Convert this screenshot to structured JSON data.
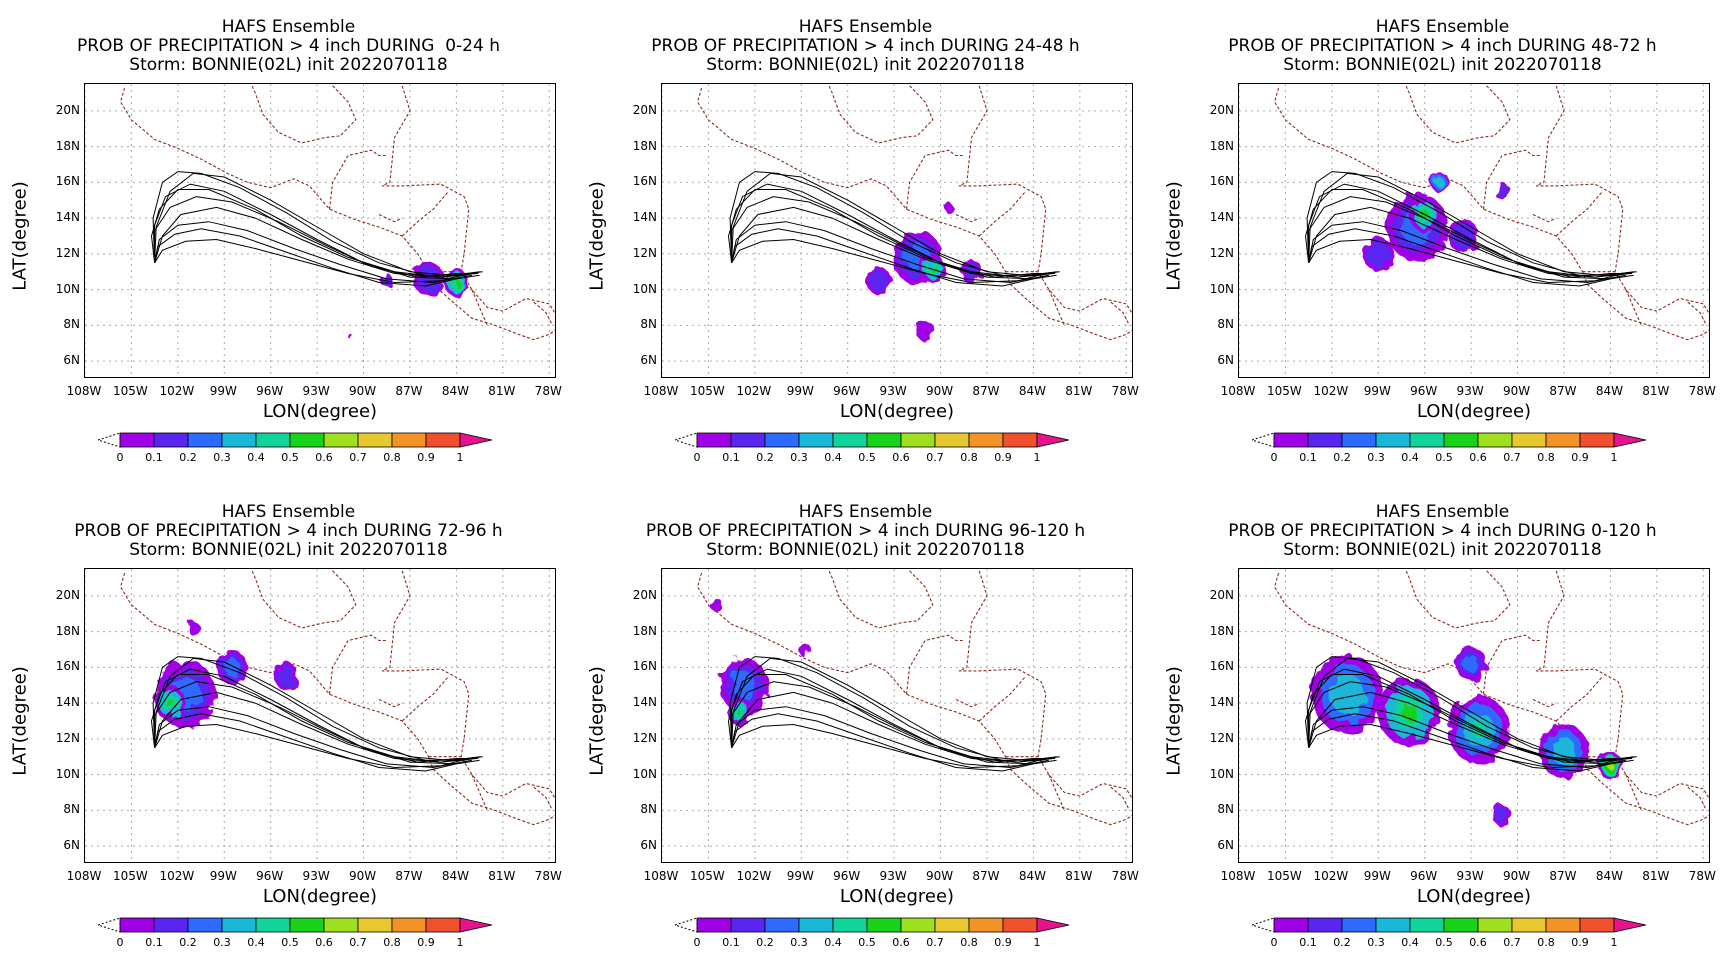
{
  "chart_data": {
    "type": "heatmap",
    "colors": {
      "scale": [
        "#a100e6",
        "#5a25f0",
        "#2d6bff",
        "#1bb7d8",
        "#0fd59a",
        "#19d21a",
        "#9fe01e",
        "#e8c830",
        "#f39225",
        "#f0502d",
        "#e6148c"
      ],
      "map_border": "#8b2a1f",
      "grid": "#aaaaaa",
      "track": "#000000"
    },
    "colorbar": {
      "labels": [
        "0",
        "0.1",
        "0.2",
        "0.3",
        "0.4",
        "0.5",
        "0.6",
        "0.7",
        "0.8",
        "0.9",
        "1"
      ]
    },
    "panels": [
      {
        "title_line1": "HAFS Ensemble",
        "title_line2": "PROB OF PRECIPITATION > 4 inch DURING  0-24 h",
        "title_line3": "Storm: BONNIE(02L) init 2022070118",
        "xlabel": "LON(degree)",
        "ylabel": "LAT(degree)",
        "x_ticks": [
          "108W",
          "105W",
          "102W",
          "99W",
          "96W",
          "93W",
          "90W",
          "87W",
          "84W",
          "81W",
          "78W"
        ],
        "y_ticks": [
          "20N",
          "18N",
          "16N",
          "14N",
          "12N",
          "10N",
          "8N",
          "6N"
        ],
        "xlim": [
          -108,
          -77.5
        ],
        "ylim": [
          5,
          21.5
        ],
        "blobs": [
          {
            "lon": -85.8,
            "lat": 10.6,
            "r": 1.0,
            "p": 0.15
          },
          {
            "lon": -84.0,
            "lat": 10.4,
            "r": 0.8,
            "p": 0.45
          },
          {
            "lon": -88.5,
            "lat": 10.5,
            "r": 0.4,
            "p": 0.1
          },
          {
            "lon": -91.0,
            "lat": 7.5,
            "r": 0.15,
            "p": 0.05
          }
        ]
      },
      {
        "title_line1": "HAFS Ensemble",
        "title_line2": "PROB OF PRECIPITATION > 4 inch DURING 24-48 h",
        "title_line3": "Storm: BONNIE(02L) init 2022070118",
        "xlabel": "LON(degree)",
        "ylabel": "LAT(degree)",
        "x_ticks": [
          "108W",
          "105W",
          "102W",
          "99W",
          "96W",
          "93W",
          "90W",
          "87W",
          "84W",
          "81W",
          "78W"
        ],
        "y_ticks": [
          "20N",
          "18N",
          "16N",
          "14N",
          "12N",
          "10N",
          "8N",
          "6N"
        ],
        "xlim": [
          -108,
          -77.5
        ],
        "ylim": [
          5,
          21.5
        ],
        "blobs": [
          {
            "lon": -91.5,
            "lat": 11.8,
            "r": 1.6,
            "p": 0.2
          },
          {
            "lon": -90.5,
            "lat": 11.2,
            "r": 0.8,
            "p": 0.4
          },
          {
            "lon": -94.0,
            "lat": 10.5,
            "r": 0.8,
            "p": 0.1
          },
          {
            "lon": -91.0,
            "lat": 7.7,
            "r": 0.6,
            "p": 0.05
          },
          {
            "lon": -88.0,
            "lat": 11.0,
            "r": 0.7,
            "p": 0.1
          },
          {
            "lon": -89.5,
            "lat": 14.6,
            "r": 0.3,
            "p": 0.05
          }
        ]
      },
      {
        "title_line1": "HAFS Ensemble",
        "title_line2": "PROB OF PRECIPITATION > 4 inch DURING 48-72 h",
        "title_line3": "Storm: BONNIE(02L) init 2022070118",
        "xlabel": "LON(degree)",
        "ylabel": "LAT(degree)",
        "x_ticks": [
          "108W",
          "105W",
          "102W",
          "99W",
          "96W",
          "93W",
          "90W",
          "87W",
          "84W",
          "81W",
          "78W"
        ],
        "y_ticks": [
          "20N",
          "18N",
          "16N",
          "14N",
          "12N",
          "10N",
          "8N",
          "6N"
        ],
        "xlim": [
          -108,
          -77.5
        ],
        "ylim": [
          5,
          21.5
        ],
        "blobs": [
          {
            "lon": -96.5,
            "lat": 13.5,
            "r": 2.0,
            "p": 0.2
          },
          {
            "lon": -96.0,
            "lat": 14.2,
            "r": 1.0,
            "p": 0.4
          },
          {
            "lon": -95.0,
            "lat": 16.0,
            "r": 0.6,
            "p": 0.3
          },
          {
            "lon": -91.0,
            "lat": 15.5,
            "r": 0.5,
            "p": 0.1
          },
          {
            "lon": -99.0,
            "lat": 12.0,
            "r": 1.0,
            "p": 0.15
          },
          {
            "lon": -93.5,
            "lat": 13.0,
            "r": 1.0,
            "p": 0.1
          }
        ]
      },
      {
        "title_line1": "HAFS Ensemble",
        "title_line2": "PROB OF PRECIPITATION > 4 inch DURING 72-96 h",
        "title_line3": "Storm: BONNIE(02L) init 2022070118",
        "xlabel": "LON(degree)",
        "ylabel": "LAT(degree)",
        "x_ticks": [
          "108W",
          "105W",
          "102W",
          "99W",
          "96W",
          "93W",
          "90W",
          "87W",
          "84W",
          "81W",
          "78W"
        ],
        "y_ticks": [
          "20N",
          "18N",
          "16N",
          "14N",
          "12N",
          "10N",
          "8N",
          "6N"
        ],
        "xlim": [
          -108,
          -77.5
        ],
        "ylim": [
          5,
          21.5
        ],
        "blobs": [
          {
            "lon": -101.5,
            "lat": 14.5,
            "r": 2.0,
            "p": 0.2
          },
          {
            "lon": -102.5,
            "lat": 14.0,
            "r": 1.0,
            "p": 0.45
          },
          {
            "lon": -98.5,
            "lat": 16.0,
            "r": 1.0,
            "p": 0.2
          },
          {
            "lon": -95.0,
            "lat": 15.5,
            "r": 0.8,
            "p": 0.15
          },
          {
            "lon": -101.0,
            "lat": 18.2,
            "r": 0.4,
            "p": 0.05
          }
        ]
      },
      {
        "title_line1": "HAFS Ensemble",
        "title_line2": "PROB OF PRECIPITATION > 4 inch DURING 96-120 h",
        "title_line3": "Storm: BONNIE(02L) init 2022070118",
        "xlabel": "LON(degree)",
        "ylabel": "LAT(degree)",
        "x_ticks": [
          "108W",
          "105W",
          "102W",
          "99W",
          "96W",
          "93W",
          "90W",
          "87W",
          "84W",
          "81W",
          "78W"
        ],
        "y_ticks": [
          "20N",
          "18N",
          "16N",
          "14N",
          "12N",
          "10N",
          "8N",
          "6N"
        ],
        "xlim": [
          -108,
          -77.5
        ],
        "ylim": [
          5,
          21.5
        ],
        "blobs": [
          {
            "lon": -102.7,
            "lat": 15.0,
            "r": 1.6,
            "p": 0.2
          },
          {
            "lon": -103.0,
            "lat": 13.5,
            "r": 0.8,
            "p": 0.4
          },
          {
            "lon": -98.8,
            "lat": 17.0,
            "r": 0.4,
            "p": 0.05
          },
          {
            "lon": -104.5,
            "lat": 19.5,
            "r": 0.4,
            "p": 0.05
          }
        ]
      },
      {
        "title_line1": "HAFS Ensemble",
        "title_line2": "PROB OF PRECIPITATION > 4 inch DURING 0-120 h",
        "title_line3": "Storm: BONNIE(02L) init 2022070118",
        "xlabel": "LON(degree)",
        "ylabel": "LAT(degree)",
        "x_ticks": [
          "108W",
          "105W",
          "102W",
          "99W",
          "96W",
          "93W",
          "90W",
          "87W",
          "84W",
          "81W",
          "78W"
        ],
        "y_ticks": [
          "20N",
          "18N",
          "16N",
          "14N",
          "12N",
          "10N",
          "8N",
          "6N"
        ],
        "xlim": [
          -108,
          -77.5
        ],
        "ylim": [
          5,
          21.5
        ],
        "blobs": [
          {
            "lon": -101.0,
            "lat": 14.5,
            "r": 2.3,
            "p": 0.3
          },
          {
            "lon": -97.0,
            "lat": 13.5,
            "r": 2.0,
            "p": 0.45
          },
          {
            "lon": -92.5,
            "lat": 12.5,
            "r": 2.0,
            "p": 0.35
          },
          {
            "lon": -87.0,
            "lat": 11.3,
            "r": 1.6,
            "p": 0.3
          },
          {
            "lon": -84.0,
            "lat": 10.5,
            "r": 0.8,
            "p": 0.55
          },
          {
            "lon": -91.0,
            "lat": 7.7,
            "r": 0.6,
            "p": 0.1
          },
          {
            "lon": -93.0,
            "lat": 16.2,
            "r": 1.0,
            "p": 0.2
          }
        ]
      }
    ],
    "tracks": [
      [
        [
          -103.5,
          11.5
        ],
        [
          -103.7,
          13.0
        ],
        [
          -103.2,
          14.5
        ],
        [
          -102.0,
          15.6
        ],
        [
          -100.0,
          15.6
        ],
        [
          -97.0,
          14.5
        ],
        [
          -94.0,
          13.0
        ],
        [
          -91.0,
          11.8
        ],
        [
          -88.0,
          11.0
        ],
        [
          -85.0,
          10.7
        ],
        [
          -82.5,
          11.0
        ]
      ],
      [
        [
          -103.5,
          11.5
        ],
        [
          -103.4,
          13.5
        ],
        [
          -102.5,
          15.5
        ],
        [
          -101.0,
          16.5
        ],
        [
          -99.0,
          16.3
        ],
        [
          -96.0,
          15.0
        ],
        [
          -93.0,
          13.5
        ],
        [
          -90.0,
          12.0
        ],
        [
          -87.0,
          11.0
        ],
        [
          -84.5,
          10.8
        ],
        [
          -82.3,
          11.0
        ]
      ],
      [
        [
          -103.5,
          11.5
        ],
        [
          -103.0,
          13.0
        ],
        [
          -101.8,
          14.2
        ],
        [
          -99.5,
          14.6
        ],
        [
          -97.0,
          14.0
        ],
        [
          -94.0,
          12.8
        ],
        [
          -91.0,
          11.7
        ],
        [
          -88.0,
          10.9
        ],
        [
          -85.0,
          10.7
        ],
        [
          -82.7,
          10.9
        ]
      ],
      [
        [
          -103.5,
          11.5
        ],
        [
          -103.5,
          13.6
        ],
        [
          -102.8,
          15.2
        ],
        [
          -101.2,
          15.9
        ],
        [
          -99.0,
          15.5
        ],
        [
          -96.0,
          14.2
        ],
        [
          -93.0,
          12.8
        ],
        [
          -90.0,
          11.5
        ],
        [
          -87.0,
          10.7
        ],
        [
          -84.0,
          10.6
        ],
        [
          -82.5,
          10.8
        ]
      ],
      [
        [
          -103.5,
          11.5
        ],
        [
          -103.2,
          12.8
        ],
        [
          -102.0,
          13.6
        ],
        [
          -100.0,
          13.8
        ],
        [
          -97.5,
          13.3
        ],
        [
          -94.5,
          12.3
        ],
        [
          -91.5,
          11.4
        ],
        [
          -88.5,
          10.6
        ],
        [
          -85.5,
          10.4
        ],
        [
          -83.0,
          10.8
        ]
      ],
      [
        [
          -103.5,
          11.5
        ],
        [
          -103.6,
          14.0
        ],
        [
          -103.0,
          16.0
        ],
        [
          -102.0,
          16.6
        ],
        [
          -100.5,
          16.5
        ],
        [
          -98.0,
          15.7
        ],
        [
          -95.0,
          14.3
        ],
        [
          -92.0,
          12.7
        ],
        [
          -89.0,
          11.5
        ],
        [
          -86.0,
          10.8
        ],
        [
          -83.5,
          10.8
        ],
        [
          -82.4,
          11.0
        ]
      ],
      [
        [
          -103.5,
          11.5
        ],
        [
          -103.3,
          12.4
        ],
        [
          -102.2,
          13.1
        ],
        [
          -100.5,
          13.4
        ],
        [
          -98.0,
          13.0
        ],
        [
          -95.0,
          12.1
        ],
        [
          -92.0,
          11.2
        ],
        [
          -89.0,
          10.4
        ],
        [
          -86.0,
          10.2
        ],
        [
          -84.0,
          10.6
        ]
      ],
      [
        [
          -103.5,
          11.5
        ],
        [
          -103.5,
          13.3
        ],
        [
          -102.5,
          14.6
        ],
        [
          -100.8,
          15.2
        ],
        [
          -98.5,
          14.9
        ],
        [
          -95.5,
          13.8
        ],
        [
          -92.5,
          12.5
        ],
        [
          -89.5,
          11.3
        ],
        [
          -86.5,
          10.7
        ],
        [
          -84.0,
          10.9
        ],
        [
          -82.6,
          10.9
        ]
      ],
      [
        [
          -103.5,
          11.5
        ],
        [
          -103.0,
          12.2
        ],
        [
          -101.5,
          12.7
        ],
        [
          -99.5,
          12.8
        ],
        [
          -97.0,
          12.3
        ],
        [
          -94.0,
          11.6
        ],
        [
          -91.0,
          10.9
        ],
        [
          -88.0,
          10.4
        ],
        [
          -85.0,
          10.5
        ],
        [
          -83.2,
          10.9
        ]
      ]
    ]
  }
}
